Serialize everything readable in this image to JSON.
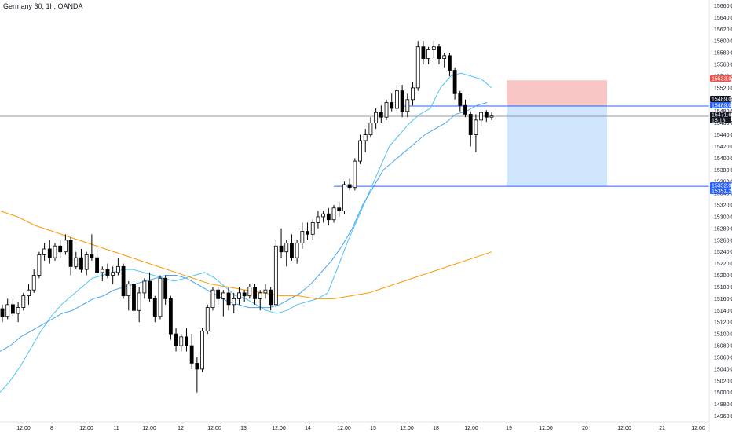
{
  "header": {
    "title": "Germany 30, 1h, OANDA"
  },
  "chart_data": {
    "type": "candlestick",
    "symbol": "Germany 30",
    "interval": "1h",
    "source": "OANDA",
    "y_axis": {
      "ticks": [
        15660.0,
        15640.0,
        15620.0,
        15600.0,
        15580.0,
        15560.0,
        15540.0,
        15520.0,
        15500.0,
        15480.0,
        15460.0,
        15440.0,
        15420.0,
        15400.0,
        15380.0,
        15360.0,
        15340.0,
        15320.0,
        15300.0,
        15280.0,
        15260.0,
        15240.0,
        15220.0,
        15200.0,
        15180.0,
        15160.0,
        15140.0,
        15120.0,
        15100.0,
        15080.0,
        15060.0,
        15040.0,
        15020.0,
        15000.0,
        14980.0,
        14960.0
      ],
      "ylim": [
        14950,
        15670
      ]
    },
    "x_axis": {
      "labels": [
        "12:00",
        "8",
        "12:00",
        "11",
        "12:00",
        "12",
        "12:00",
        "13",
        "12:00",
        "14",
        "12:00",
        "15",
        "12:00",
        "18",
        "12:00",
        "19",
        "12:00",
        "20",
        "12:00",
        "21",
        "12:00"
      ]
    },
    "price_labels": [
      {
        "value": "15533.0",
        "color": "#ef5350"
      },
      {
        "value": "15489.0",
        "color": "#131722"
      },
      {
        "value": "15489.0",
        "color": "#2962ff"
      },
      {
        "value": "15471.6",
        "color": "#131722"
      },
      {
        "value": "15:13",
        "color": "#131722"
      },
      {
        "value": "15352.0",
        "color": "#2962ff"
      },
      {
        "value": "15351.2",
        "color": "#2962ff"
      }
    ],
    "position": {
      "entry": 15489.0,
      "stop": 15533.0,
      "target": 15352.0,
      "stop_color": "#f7c6c5",
      "target_color": "#cfe5fb"
    },
    "horizontal_lines": [
      {
        "price": 15489.0,
        "color": "#2962ff"
      },
      {
        "price": 15352.0,
        "color": "#2962ff"
      },
      {
        "price": 15471.6,
        "color": "#9598a1"
      }
    ],
    "candles": [
      [
        15143,
        15150,
        15120,
        15130
      ],
      [
        15130,
        15160,
        15125,
        15150
      ],
      [
        15150,
        15160,
        15130,
        15135
      ],
      [
        15135,
        15155,
        15120,
        15145
      ],
      [
        15145,
        15170,
        15140,
        15165
      ],
      [
        15165,
        15185,
        15150,
        15175
      ],
      [
        15175,
        15210,
        15170,
        15200
      ],
      [
        15200,
        15240,
        15195,
        15235
      ],
      [
        15235,
        15255,
        15225,
        15245
      ],
      [
        15245,
        15260,
        15220,
        15230
      ],
      [
        15230,
        15255,
        15225,
        15250
      ],
      [
        15250,
        15260,
        15230,
        15240
      ],
      [
        15240,
        15270,
        15235,
        15260
      ],
      [
        15260,
        15265,
        15200,
        15215
      ],
      [
        15215,
        15240,
        15210,
        15230
      ],
      [
        15230,
        15245,
        15205,
        15210
      ],
      [
        15210,
        15240,
        15200,
        15235
      ],
      [
        15235,
        15270,
        15225,
        15230
      ],
      [
        15230,
        15245,
        15200,
        15205
      ],
      [
        15205,
        15215,
        15190,
        15210
      ],
      [
        15210,
        15220,
        15195,
        15200
      ],
      [
        15200,
        15215,
        15185,
        15205
      ],
      [
        15205,
        15230,
        15200,
        15215
      ],
      [
        15215,
        15220,
        15160,
        15165
      ],
      [
        15165,
        15190,
        15140,
        15185
      ],
      [
        15185,
        15190,
        15130,
        15140
      ],
      [
        15140,
        15180,
        15120,
        15170
      ],
      [
        15170,
        15195,
        15160,
        15190
      ],
      [
        15190,
        15205,
        15155,
        15160
      ],
      [
        15160,
        15165,
        15120,
        15130
      ],
      [
        15130,
        15200,
        15125,
        15195
      ],
      [
        15195,
        15200,
        15150,
        15160
      ],
      [
        15160,
        15165,
        15090,
        15100
      ],
      [
        15100,
        15110,
        15070,
        15080
      ],
      [
        15080,
        15100,
        15070,
        15095
      ],
      [
        15095,
        15110,
        15070,
        15080
      ],
      [
        15080,
        15100,
        15040,
        15050
      ],
      [
        15050,
        15060,
        15000,
        15040
      ],
      [
        15040,
        15110,
        15035,
        15105
      ],
      [
        15105,
        15150,
        15100,
        15145
      ],
      [
        15145,
        15180,
        15140,
        15175
      ],
      [
        15175,
        15180,
        15150,
        15160
      ],
      [
        15160,
        15175,
        15130,
        15170
      ],
      [
        15170,
        15180,
        15140,
        15150
      ],
      [
        15150,
        15170,
        15135,
        15160
      ],
      [
        15160,
        15180,
        15150,
        15170
      ],
      [
        15170,
        15175,
        15155,
        15165
      ],
      [
        15165,
        15185,
        15160,
        15180
      ],
      [
        15180,
        15185,
        15150,
        15160
      ],
      [
        15160,
        15175,
        15140,
        15170
      ],
      [
        15170,
        15185,
        15160,
        15175
      ],
      [
        15175,
        15180,
        15140,
        15150
      ],
      [
        15150,
        15260,
        15145,
        15250
      ],
      [
        15250,
        15280,
        15230,
        15240
      ],
      [
        15240,
        15260,
        15215,
        15255
      ],
      [
        15255,
        15270,
        15225,
        15230
      ],
      [
        15230,
        15260,
        15220,
        15255
      ],
      [
        15255,
        15290,
        15245,
        15275
      ],
      [
        15275,
        15290,
        15260,
        15270
      ],
      [
        15270,
        15295,
        15260,
        15290
      ],
      [
        15290,
        15310,
        15280,
        15300
      ],
      [
        15300,
        15310,
        15290,
        15305
      ],
      [
        15305,
        15315,
        15285,
        15295
      ],
      [
        15295,
        15320,
        15290,
        15315
      ],
      [
        15315,
        15325,
        15300,
        15310
      ],
      [
        15310,
        15360,
        15305,
        15355
      ],
      [
        15355,
        15365,
        15345,
        15350
      ],
      [
        15350,
        15400,
        15345,
        15395
      ],
      [
        15395,
        15440,
        15390,
        15430
      ],
      [
        15430,
        15450,
        15410,
        15440
      ],
      [
        15440,
        15470,
        15435,
        15460
      ],
      [
        15460,
        15485,
        15450,
        15478
      ],
      [
        15478,
        15490,
        15460,
        15470
      ],
      [
        15470,
        15500,
        15465,
        15495
      ],
      [
        15495,
        15510,
        15480,
        15485
      ],
      [
        15485,
        15525,
        15480,
        15515
      ],
      [
        15515,
        15525,
        15470,
        15480
      ],
      [
        15480,
        15510,
        15470,
        15500
      ],
      [
        15500,
        15530,
        15490,
        15520
      ],
      [
        15520,
        15600,
        15515,
        15590
      ],
      [
        15590,
        15600,
        15560,
        15570
      ],
      [
        15570,
        15590,
        15560,
        15585
      ],
      [
        15585,
        15600,
        15570,
        15590
      ],
      [
        15590,
        15595,
        15560,
        15570
      ],
      [
        15570,
        15580,
        15555,
        15575
      ],
      [
        15575,
        15580,
        15540,
        15550
      ],
      [
        15550,
        15555,
        15500,
        15510
      ],
      [
        15510,
        15515,
        15480,
        15490
      ],
      [
        15490,
        15500,
        15470,
        15475
      ],
      [
        15475,
        15480,
        15420,
        15440
      ],
      [
        15440,
        15475,
        15410,
        15465
      ],
      [
        15465,
        15480,
        15455,
        15478
      ],
      [
        15478,
        15482,
        15462,
        15470
      ],
      [
        15470,
        15478,
        15465,
        15472
      ]
    ],
    "ema_light_blue": [
      15000,
      15020,
      15045,
      15075,
      15105,
      15130,
      15150,
      15165,
      15180,
      15195,
      15200,
      15205,
      15210,
      15210,
      15205,
      15200,
      15195,
      15190,
      15195,
      15200,
      15205,
      15195,
      15180,
      15165,
      15160,
      15150,
      15140,
      15135,
      15140,
      15150,
      15155,
      15160,
      15170,
      15215,
      15260,
      15300,
      15340,
      15380,
      15420,
      15440,
      15460,
      15475,
      15485,
      15520,
      15540,
      15545,
      15540,
      15535,
      15520
    ],
    "ema_blue": [
      15070,
      15080,
      15095,
      15105,
      15115,
      15125,
      15135,
      15140,
      15150,
      15160,
      15165,
      15175,
      15180,
      15185,
      15190,
      15195,
      15200,
      15200,
      15195,
      15185,
      15175,
      15165,
      15155,
      15150,
      15145,
      15145,
      15145,
      15150,
      15160,
      15170,
      15185,
      15205,
      15225,
      15250,
      15280,
      15320,
      15350,
      15380,
      15395,
      15410,
      15425,
      15440,
      15450,
      15460,
      15475,
      15480,
      15490,
      15495
    ],
    "ema_orange": [
      15310,
      15300,
      15285,
      15275,
      15265,
      15255,
      15245,
      15235,
      15225,
      15215,
      15205,
      15195,
      15185,
      15180,
      15175,
      15170,
      15165,
      15165,
      15160,
      15160,
      15165,
      15170,
      15180,
      15190,
      15200,
      15210,
      15220,
      15230,
      15240
    ]
  }
}
